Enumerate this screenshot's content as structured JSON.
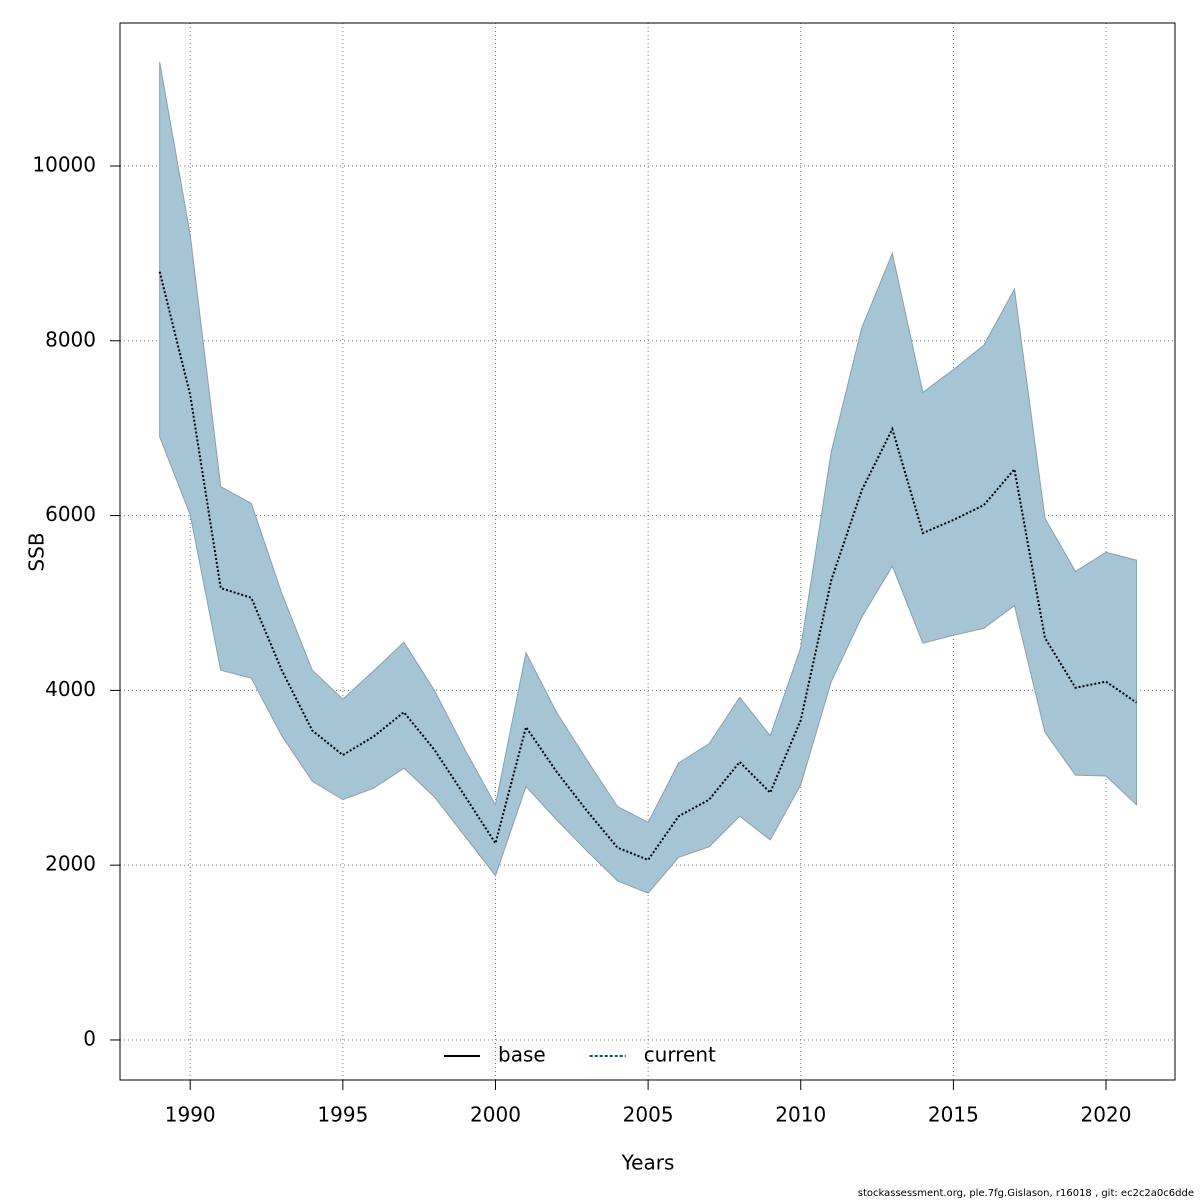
{
  "chart_data": {
    "type": "band-line",
    "xlabel": "Years",
    "ylabel": "SSB",
    "footer": "stockassessment.org, ple.7fg.Gislason, r16018 , git: ec2c2a0c6dde",
    "x": [
      1989,
      1990,
      1991,
      1992,
      1993,
      1994,
      1995,
      1996,
      1997,
      1998,
      1999,
      2000,
      2001,
      2002,
      2003,
      2004,
      2005,
      2006,
      2007,
      2008,
      2009,
      2010,
      2011,
      2012,
      2013,
      2014,
      2015,
      2016,
      2017,
      2018,
      2019,
      2020,
      2021
    ],
    "series": [
      {
        "name": "current",
        "color": "#00508c",
        "dashed": true,
        "values": [
          8790,
          7380,
          5170,
          5060,
          4230,
          3540,
          3260,
          3470,
          3750,
          3320,
          2790,
          2250,
          3580,
          3070,
          2620,
          2200,
          2060,
          2560,
          2750,
          3180,
          2830,
          3660,
          5260,
          6290,
          6990,
          5800,
          5950,
          6120,
          6530,
          4600,
          4030,
          4100,
          3860
        ],
        "lower": [
          6900,
          6010,
          4230,
          4140,
          3480,
          2960,
          2750,
          2880,
          3110,
          2780,
          2330,
          1880,
          2900,
          2520,
          2160,
          1820,
          1680,
          2090,
          2210,
          2560,
          2290,
          2920,
          4100,
          4840,
          5420,
          4540,
          4630,
          4710,
          4970,
          3520,
          3030,
          3020,
          2690
        ],
        "upper": [
          11190,
          9210,
          6330,
          6140,
          5110,
          4230,
          3900,
          4220,
          4550,
          4000,
          3320,
          2690,
          4430,
          3750,
          3200,
          2670,
          2490,
          3170,
          3390,
          3920,
          3480,
          4490,
          6730,
          8150,
          9000,
          7410,
          7670,
          7950,
          8590,
          5970,
          5360,
          5580,
          5490
        ]
      }
    ],
    "band_color": "#a5c4d4",
    "legend": [
      {
        "label": "base",
        "color": "#000000",
        "dashed": false
      },
      {
        "label": "current",
        "color": "#00508c",
        "dashed": true
      }
    ],
    "legend_position": "bottom",
    "xlim": [
      1987.7,
      2022.26
    ],
    "xticks": [
      1990,
      1995,
      2000,
      2005,
      2010,
      2015,
      2020
    ],
    "ylim": [
      -458,
      11636
    ],
    "yticks": [
      0,
      2000,
      4000,
      6000,
      8000,
      10000
    ],
    "grid": true
  }
}
